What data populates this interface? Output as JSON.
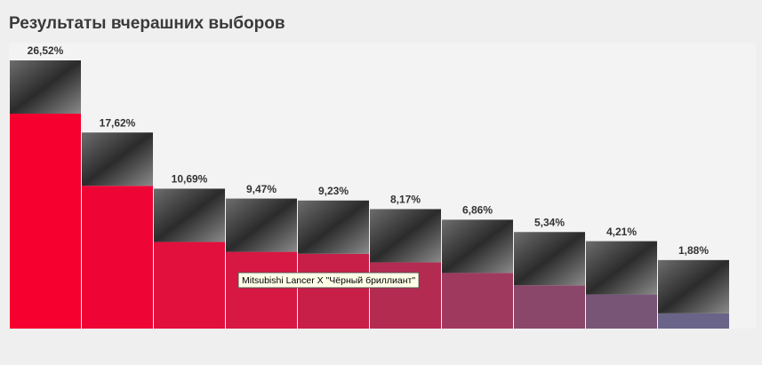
{
  "chart_data": {
    "type": "bar",
    "title": "Результаты вчерашних выборов",
    "categories": [
      null,
      null,
      null,
      "Mitsubishi Lancer X  \"Чёрный бриллиант\"",
      null,
      null,
      null,
      null,
      null,
      null
    ],
    "values": [
      26.52,
      17.62,
      10.69,
      9.47,
      9.23,
      8.17,
      6.86,
      5.34,
      4.21,
      1.88
    ],
    "value_labels": [
      "26,52%",
      "17,62%",
      "10,69%",
      "9,47%",
      "9,23%",
      "8,17%",
      "6,86%",
      "5,34%",
      "4,21%",
      "1,88%"
    ],
    "colors": [
      "#f5002f",
      "#ee0536",
      "#e2103c",
      "#d61843",
      "#c81f49",
      "#b42b52",
      "#a0395e",
      "#8b476a",
      "#785577",
      "#6a6488"
    ]
  }
}
